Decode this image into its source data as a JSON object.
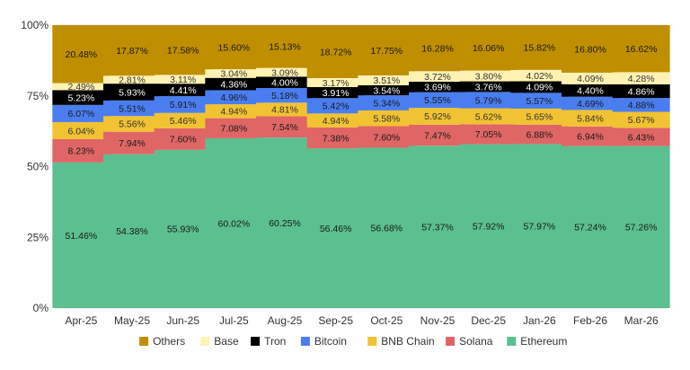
{
  "chart_data": {
    "type": "bar",
    "stacked": true,
    "categories": [
      "Apr-25",
      "May-25",
      "Jun-25",
      "Jul-25",
      "Aug-25",
      "Sep-25",
      "Oct-25",
      "Nov-25",
      "Dec-25",
      "Jan-26",
      "Feb-26",
      "Mar-26"
    ],
    "ylim": [
      0,
      100
    ],
    "y_ticks": [
      "0%",
      "25%",
      "50%",
      "75%",
      "100%"
    ],
    "grid": true,
    "legend_position": "bottom",
    "series": [
      {
        "name": "Ethereum",
        "color": "#5bbf8f",
        "values": [
          51.46,
          54.38,
          55.93,
          60.02,
          60.25,
          56.46,
          56.68,
          57.37,
          57.92,
          57.97,
          57.24,
          57.26
        ],
        "labels": [
          "51.46%",
          "54.38%",
          "55.93%",
          "60.02%",
          "60.25%",
          "56.46%",
          "56.68%",
          "57.37%",
          "57.92%",
          "57.97%",
          "57.24%",
          "57.26%"
        ]
      },
      {
        "name": "Solana",
        "color": "#e06666",
        "values": [
          8.23,
          7.94,
          7.6,
          7.08,
          7.54,
          7.38,
          7.6,
          7.47,
          7.05,
          6.88,
          6.94,
          6.43
        ],
        "labels": [
          "8.23%",
          "7.94%",
          "7.60%",
          "7.08%",
          "7.54%",
          "7.38%",
          "7.60%",
          "7.47%",
          "7.05%",
          "6.88%",
          "6.94%",
          "6.43%"
        ]
      },
      {
        "name": "BNB Chain",
        "color": "#f1c232",
        "values": [
          6.04,
          5.56,
          5.46,
          4.94,
          4.81,
          4.94,
          5.58,
          5.92,
          5.62,
          5.65,
          5.84,
          5.67
        ],
        "labels": [
          "6.04%",
          "5.56%",
          "5.46%",
          "4.94%",
          "4.81%",
          "4.94%",
          "5.58%",
          "5.92%",
          "5.62%",
          "5.65%",
          "5.84%",
          "5.67%"
        ]
      },
      {
        "name": "Bitcoin",
        "color": "#4a7ef0",
        "values": [
          6.07,
          5.51,
          5.91,
          4.96,
          5.18,
          5.42,
          5.34,
          5.55,
          5.79,
          5.57,
          4.69,
          4.88
        ],
        "labels": [
          "6.07%",
          "5.51%",
          "5.91%",
          "4.96%",
          "5.18%",
          "5.42%",
          "5.34%",
          "5.55%",
          "5.79%",
          "5.57%",
          "4.69%",
          "4.88%"
        ]
      },
      {
        "name": "Tron",
        "color": "#000000",
        "values": [
          5.23,
          5.93,
          4.41,
          4.36,
          4.0,
          3.91,
          3.54,
          3.69,
          3.76,
          4.09,
          4.4,
          4.86
        ],
        "labels": [
          "5.23%",
          "5.93%",
          "4.41%",
          "4.36%",
          "4.00%",
          "3.91%",
          "3.54%",
          "3.69%",
          "3.76%",
          "4.09%",
          "4.40%",
          "4.86%"
        ]
      },
      {
        "name": "Base",
        "color": "#fff2b3",
        "values": [
          2.49,
          2.81,
          3.11,
          3.04,
          3.09,
          3.17,
          3.51,
          3.72,
          3.8,
          4.02,
          4.09,
          4.28
        ],
        "labels": [
          "2.49%",
          "2.81%",
          "3.11%",
          "3.04%",
          "3.09%",
          "3.17%",
          "3.51%",
          "3.72%",
          "3.80%",
          "4.02%",
          "4.09%",
          "4.28%"
        ]
      },
      {
        "name": "Others",
        "color": "#bf8f00",
        "values": [
          20.48,
          17.87,
          17.58,
          15.6,
          15.13,
          18.72,
          17.75,
          16.28,
          16.06,
          15.82,
          16.8,
          16.62
        ],
        "labels": [
          "20.48%",
          "17.87%",
          "17.58%",
          "15.60%",
          "15.13%",
          "18.72%",
          "17.75%",
          "16.28%",
          "16.06%",
          "15.82%",
          "16.80%",
          "16.62%"
        ]
      }
    ],
    "legend_order": [
      "Others",
      "Base",
      "Tron",
      "Bitcoin",
      "BNB Chain",
      "Solana",
      "Ethereum"
    ]
  }
}
